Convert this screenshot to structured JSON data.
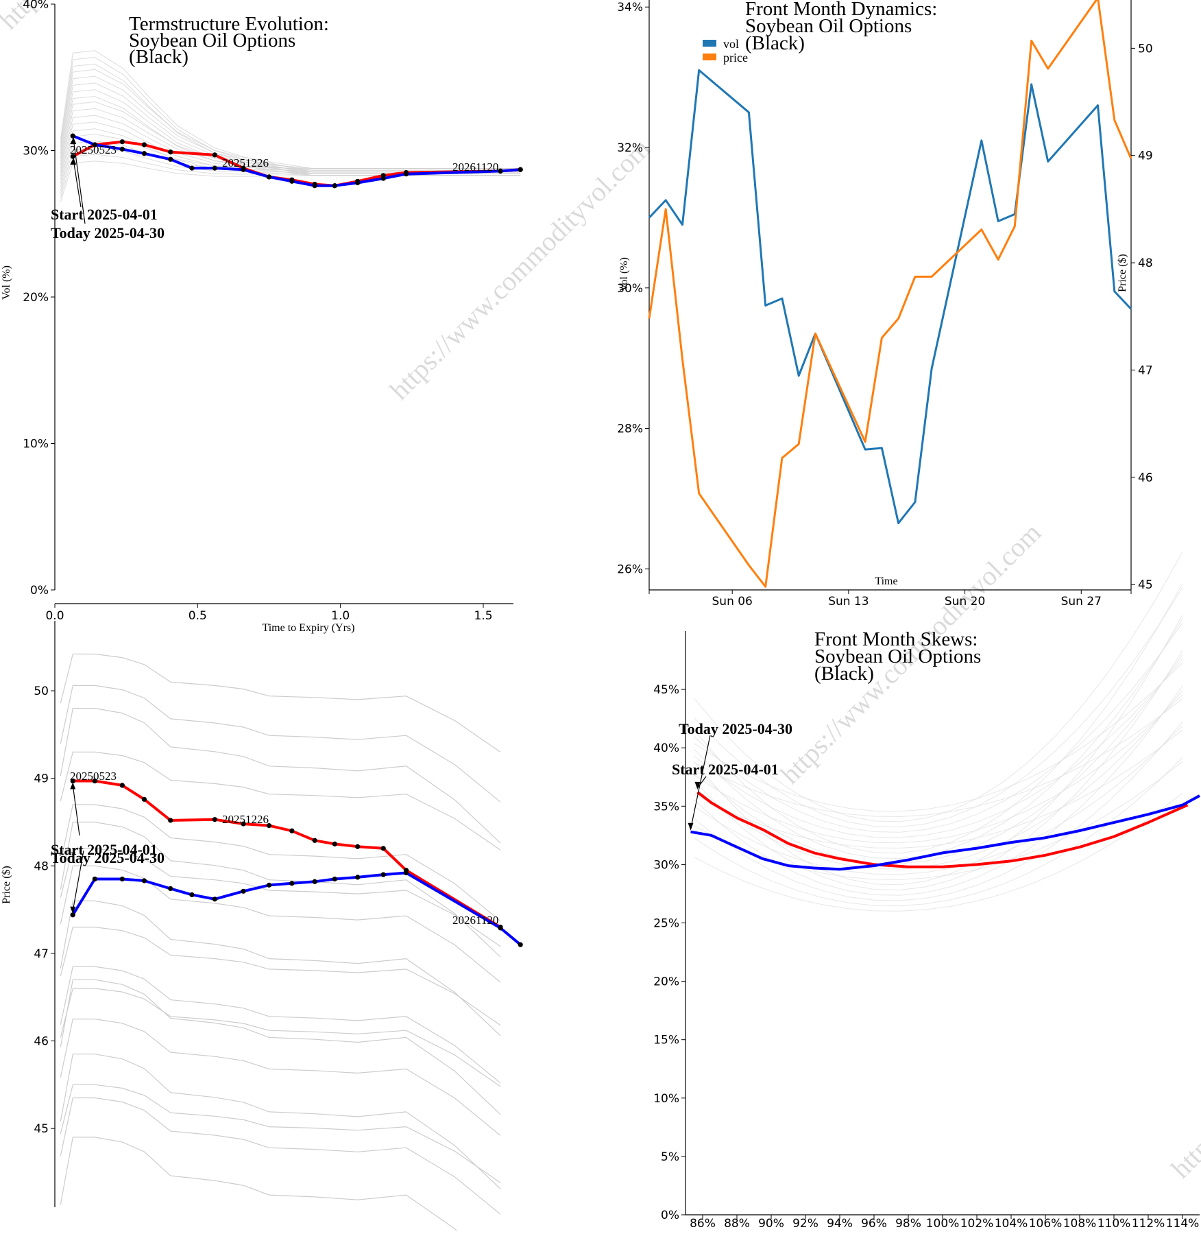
{
  "watermark": "https://www.commodityvol.com",
  "chart_data": [
    {
      "id": "term",
      "type": "line",
      "title": [
        "Termstructure Evolution:",
        "Soybean Oil Options",
        "(Black)"
      ],
      "xlabel": "Time to Expiry (Yrs)",
      "ylabel": "Vol (%)",
      "xlim": [
        0,
        1.8
      ],
      "ylim": [
        0,
        40
      ],
      "xticks": [
        0.0,
        0.5,
        1.0,
        1.5
      ],
      "xtick_labels": [
        "0.0",
        "0.5",
        "1.0",
        "1.5"
      ],
      "yticks": [
        0,
        10,
        20,
        30,
        40
      ],
      "ytick_labels": [
        "0%",
        "10%",
        "20%",
        "30%",
        "40%"
      ],
      "grid": false,
      "series": [
        {
          "color": "#ff0000",
          "role": "start",
          "x": [
            0.063,
            0.14,
            0.236,
            0.313,
            0.405,
            0.56,
            0.66,
            0.75,
            0.83,
            0.91,
            0.98,
            1.06,
            1.15,
            1.23,
            1.56,
            1.63
          ],
          "y": [
            29.6,
            30.4,
            30.6,
            30.4,
            29.9,
            29.7,
            28.8,
            28.2,
            28.0,
            27.7,
            27.6,
            27.9,
            28.3,
            28.5,
            28.6,
            28.7
          ]
        },
        {
          "color": "#0000ff",
          "role": "today",
          "x": [
            0.063,
            0.14,
            0.236,
            0.313,
            0.405,
            0.48,
            0.56,
            0.66,
            0.75,
            0.83,
            0.91,
            0.98,
            1.06,
            1.15,
            1.23,
            1.56,
            1.63
          ],
          "y": [
            31.0,
            30.4,
            30.1,
            29.8,
            29.4,
            28.8,
            28.8,
            28.7,
            28.2,
            27.9,
            27.6,
            27.6,
            27.8,
            28.1,
            28.4,
            28.6,
            28.7
          ]
        }
      ],
      "labels": [
        "20250523",
        "20251226",
        "20261120"
      ],
      "annotations": [
        "Start 2025-04-01",
        "Today 2025-04-30"
      ]
    },
    {
      "id": "dyn",
      "type": "line",
      "title": [
        "Front Month Dynamics:",
        "Soybean Oil Options",
        "(Black)"
      ],
      "xlabel": "Time",
      "ylabel": "Vol (%)",
      "y2label": "Price ($)",
      "xticks": [
        6,
        13,
        20,
        27
      ],
      "xtick_labels": [
        "Sun 06",
        "Sun 13",
        "Sun 20",
        "Sun 27"
      ],
      "xlim": [
        1,
        30
      ],
      "ylim": [
        25.7,
        34.1
      ],
      "yticks": [
        26,
        28,
        30,
        32,
        34
      ],
      "ytick_labels": [
        "26%",
        "28%",
        "30%",
        "32%",
        "34%"
      ],
      "y2lim": [
        44.95,
        50.45
      ],
      "y2ticks": [
        45,
        46,
        47,
        48,
        49,
        50
      ],
      "y2tick_labels": [
        "45",
        "46",
        "47",
        "48",
        "49",
        "50"
      ],
      "legend": [
        {
          "name": "vol",
          "color": "#1f77b4"
        },
        {
          "name": "price",
          "color": "#ff7f0e"
        }
      ],
      "legend_position": "top-left",
      "series": [
        {
          "name": "vol",
          "color": "#1f77b4",
          "axis": "left",
          "x": [
            1,
            2,
            3,
            4,
            7,
            8,
            9,
            10,
            11,
            14,
            15,
            16,
            17,
            18,
            21,
            22,
            23,
            24,
            25,
            28,
            29,
            30
          ],
          "y": [
            31.0,
            31.25,
            30.9,
            33.1,
            32.5,
            29.75,
            29.85,
            28.75,
            29.35,
            27.7,
            27.72,
            26.65,
            26.95,
            28.85,
            32.1,
            30.95,
            31.05,
            32.9,
            31.8,
            32.6,
            29.95,
            29.7
          ]
        },
        {
          "name": "price",
          "color": "#ff7f0e",
          "axis": "right",
          "x": [
            1,
            2,
            3,
            4,
            7,
            8,
            9,
            10,
            11,
            14,
            15,
            16,
            17,
            18,
            21,
            22,
            23,
            24,
            25,
            28,
            29,
            30
          ],
          "y": [
            47.48,
            48.5,
            47.1,
            45.85,
            45.18,
            44.98,
            46.18,
            46.31,
            47.34,
            46.33,
            47.3,
            47.48,
            47.87,
            47.87,
            48.31,
            48.03,
            48.34,
            50.07,
            49.81,
            50.47,
            49.33,
            48.97
          ]
        }
      ]
    },
    {
      "id": "price",
      "type": "line",
      "title": [],
      "xlabel": "",
      "ylabel": "Price ($)",
      "xlim": [
        0,
        1.8
      ],
      "ylim": [
        44.1,
        50.8
      ],
      "yticks": [
        45,
        46,
        47,
        48,
        49,
        50
      ],
      "ytick_labels": [
        "45",
        "46",
        "47",
        "48",
        "49",
        "50"
      ],
      "series": [
        {
          "color": "#ff0000",
          "role": "start",
          "x": [
            0.063,
            0.14,
            0.236,
            0.313,
            0.405,
            0.56,
            0.66,
            0.75,
            0.83,
            0.91,
            0.98,
            1.06,
            1.15,
            1.23,
            1.56
          ],
          "y": [
            48.97,
            48.97,
            48.92,
            48.76,
            48.52,
            48.53,
            48.48,
            48.46,
            48.4,
            48.29,
            48.25,
            48.22,
            48.2,
            47.95,
            47.3
          ]
        },
        {
          "color": "#0000ff",
          "role": "today",
          "x": [
            0.063,
            0.14,
            0.236,
            0.313,
            0.405,
            0.48,
            0.56,
            0.66,
            0.75,
            0.83,
            0.91,
            0.98,
            1.06,
            1.15,
            1.23,
            1.56,
            1.63
          ],
          "y": [
            47.44,
            47.85,
            47.85,
            47.83,
            47.74,
            47.67,
            47.62,
            47.71,
            47.78,
            47.8,
            47.82,
            47.85,
            47.87,
            47.9,
            47.92,
            47.29,
            47.1
          ]
        }
      ],
      "labels": [
        "20250523",
        "20251226",
        "20261120"
      ],
      "annotations": [
        "Start 2025-04-01",
        "Today 2025-04-30"
      ]
    },
    {
      "id": "skew",
      "type": "line",
      "title": [
        "Front Month Skews:",
        "Soybean Oil Options",
        "(Black)"
      ],
      "xlabel": "",
      "ylabel": "",
      "xlim": [
        85,
        115
      ],
      "ylim": [
        0,
        50
      ],
      "xticks": [
        86,
        88,
        90,
        92,
        94,
        96,
        98,
        100,
        102,
        104,
        106,
        108,
        110,
        112,
        114
      ],
      "xtick_labels": [
        "86%",
        "88%",
        "90%",
        "92%",
        "94%",
        "96%",
        "98%",
        "100%",
        "102%",
        "104%",
        "106%",
        "108%",
        "110%",
        "112%",
        "114%"
      ],
      "yticks": [
        0,
        5,
        10,
        15,
        20,
        25,
        30,
        35,
        40,
        45
      ],
      "ytick_labels": [
        "0%",
        "5%",
        "10%",
        "15%",
        "20%",
        "25%",
        "30%",
        "35%",
        "40%",
        "45%"
      ],
      "series": [
        {
          "color": "#ff0000",
          "role": "start",
          "x": [
            85.7,
            86.5,
            88,
            89.5,
            91,
            92.5,
            94,
            96,
            98,
            100,
            102,
            104,
            106,
            108,
            110,
            112,
            114.3
          ],
          "y": [
            36.2,
            35.3,
            34.0,
            33.0,
            31.8,
            31.0,
            30.5,
            30.0,
            29.8,
            29.8,
            30.0,
            30.3,
            30.8,
            31.5,
            32.4,
            33.6,
            35.1
          ]
        },
        {
          "color": "#0000ff",
          "role": "today",
          "x": [
            85.3,
            86.5,
            88,
            89.5,
            91,
            92.5,
            94,
            96,
            98,
            100,
            102,
            104,
            106,
            108,
            110,
            112,
            114,
            115
          ],
          "y": [
            32.8,
            32.5,
            31.5,
            30.5,
            29.9,
            29.7,
            29.6,
            29.9,
            30.4,
            31.0,
            31.4,
            31.9,
            32.3,
            32.9,
            33.6,
            34.3,
            35.1,
            35.9
          ]
        }
      ],
      "annotations": [
        "Today 2025-04-30",
        "Start 2025-04-01"
      ]
    }
  ]
}
